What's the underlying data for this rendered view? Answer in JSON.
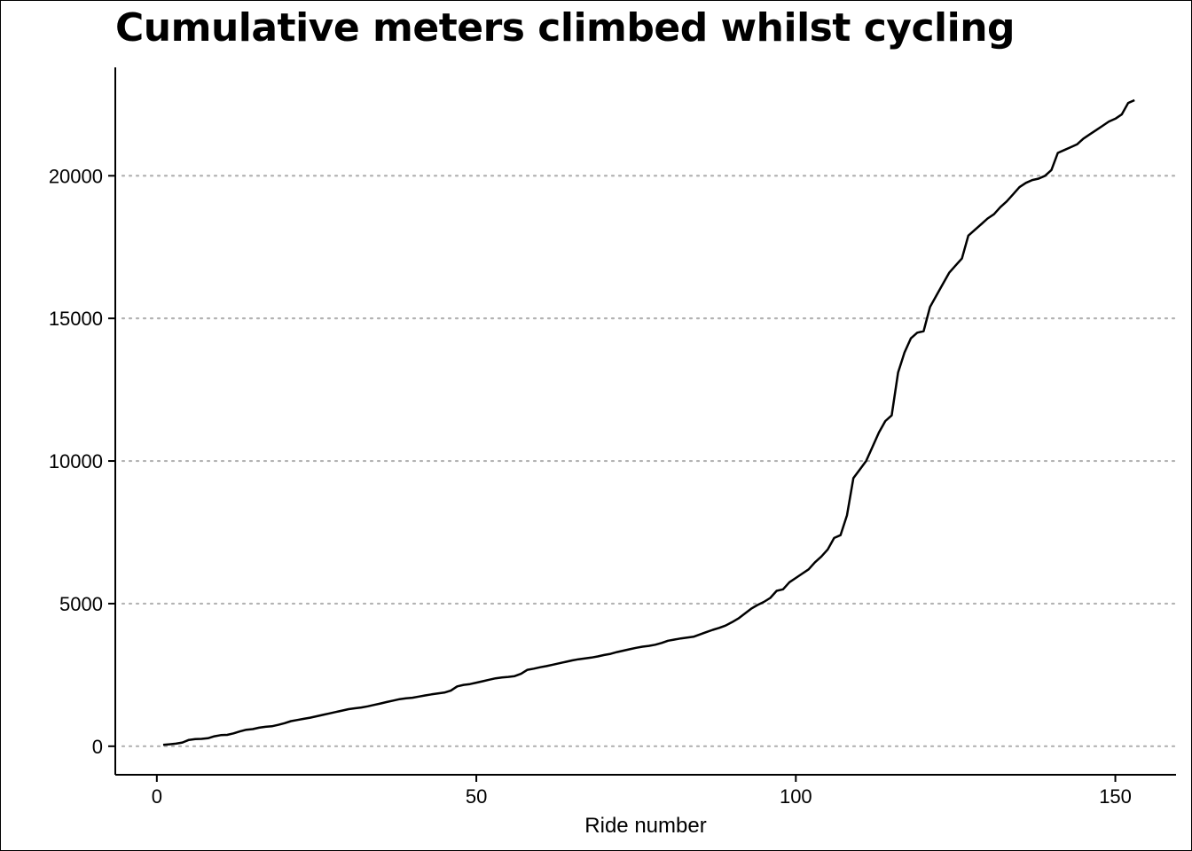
{
  "chart_data": {
    "type": "line",
    "title": "Cumulative meters climbed whilst cycling",
    "xlabel": "Ride number",
    "ylabel": "",
    "xlim": [
      -6.5,
      159.5
    ],
    "ylim": [
      -1000,
      23800
    ],
    "x_ticks": [
      0,
      50,
      100,
      150
    ],
    "y_ticks": [
      0,
      5000,
      10000,
      15000,
      20000
    ],
    "x_tick_labels": [
      "0",
      "50",
      "100",
      "150"
    ],
    "y_tick_labels": [
      "0",
      "5000",
      "10000",
      "15000",
      "20000"
    ],
    "grid": "horizontal dotted",
    "line_color": "#000000",
    "grid_color": "#b3b3b3",
    "series": [
      {
        "x": [
          1,
          2,
          3,
          4,
          5,
          6,
          7,
          8,
          9,
          10,
          11,
          12,
          13,
          14,
          15,
          16,
          17,
          18,
          19,
          20,
          21,
          22,
          23,
          24,
          25,
          26,
          27,
          28,
          29,
          30,
          31,
          32,
          33,
          34,
          35,
          36,
          37,
          38,
          39,
          40,
          41,
          42,
          43,
          44,
          45,
          46,
          47,
          48,
          49,
          50,
          51,
          52,
          53,
          54,
          55,
          56,
          57,
          58,
          59,
          60,
          61,
          62,
          63,
          64,
          65,
          66,
          67,
          68,
          69,
          70,
          71,
          72,
          73,
          74,
          75,
          76,
          77,
          78,
          79,
          80,
          81,
          82,
          83,
          84,
          85,
          86,
          87,
          88,
          89,
          90,
          91,
          92,
          93,
          94,
          95,
          96,
          97,
          98,
          99,
          100,
          101,
          102,
          103,
          104,
          105,
          106,
          107,
          108,
          109,
          110,
          111,
          112,
          113,
          114,
          115,
          116,
          117,
          118,
          119,
          120,
          121,
          122,
          123,
          124,
          125,
          126,
          127,
          128,
          129,
          130,
          131,
          132,
          133,
          134,
          135,
          136,
          137,
          138,
          139,
          140,
          141,
          142,
          143,
          144,
          145,
          146,
          147,
          148,
          149,
          150,
          151,
          152,
          153
        ],
        "y": [
          50,
          70,
          90,
          130,
          220,
          250,
          260,
          280,
          350,
          390,
          400,
          450,
          520,
          580,
          600,
          650,
          680,
          700,
          750,
          810,
          880,
          920,
          960,
          1000,
          1050,
          1100,
          1150,
          1200,
          1250,
          1300,
          1330,
          1360,
          1400,
          1450,
          1500,
          1550,
          1600,
          1650,
          1680,
          1700,
          1740,
          1780,
          1820,
          1850,
          1880,
          1950,
          2100,
          2150,
          2180,
          2230,
          2280,
          2330,
          2380,
          2410,
          2430,
          2460,
          2540,
          2680,
          2720,
          2770,
          2810,
          2860,
          2910,
          2960,
          3010,
          3050,
          3080,
          3110,
          3150,
          3200,
          3240,
          3300,
          3350,
          3400,
          3450,
          3490,
          3520,
          3560,
          3620,
          3700,
          3740,
          3780,
          3810,
          3840,
          3920,
          4000,
          4080,
          4150,
          4230,
          4350,
          4480,
          4650,
          4820,
          4950,
          5060,
          5200,
          5450,
          5500,
          5750,
          5900,
          6050,
          6200,
          6450,
          6650,
          6900,
          7300,
          7400,
          8100,
          9400,
          9700,
          10000,
          10500,
          11000,
          11400,
          11600,
          13100,
          13800,
          14300,
          14500,
          14550,
          15400,
          15800,
          16200,
          16600,
          16850,
          17100,
          17900,
          18100,
          18300,
          18500,
          18650,
          18900,
          19100,
          19350,
          19600,
          19750,
          19850,
          19900,
          20000,
          20200,
          20800,
          20900,
          21000,
          21100,
          21300,
          21450,
          21600,
          21750,
          21900,
          22000,
          22150,
          22550,
          22650
        ]
      }
    ]
  }
}
